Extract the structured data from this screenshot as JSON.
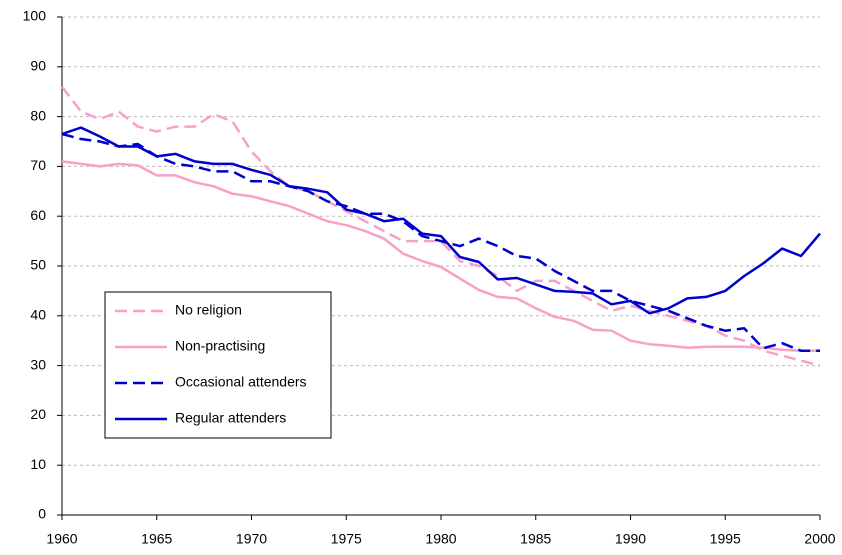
{
  "chart_data": {
    "type": "line",
    "x": [
      1960,
      1961,
      1962,
      1963,
      1964,
      1965,
      1966,
      1967,
      1968,
      1969,
      1970,
      1971,
      1972,
      1973,
      1974,
      1975,
      1976,
      1977,
      1978,
      1979,
      1980,
      1981,
      1982,
      1983,
      1984,
      1985,
      1986,
      1987,
      1988,
      1989,
      1990,
      1991,
      1992,
      1993,
      1994,
      1995,
      1996,
      1997,
      1998,
      1999,
      2000
    ],
    "xlim": [
      1960,
      2000
    ],
    "xticks": [
      1960,
      1965,
      1970,
      1975,
      1980,
      1985,
      1990,
      1995,
      2000
    ],
    "ylim": [
      0,
      100
    ],
    "yticks": [
      0,
      10,
      20,
      30,
      40,
      50,
      60,
      70,
      80,
      90,
      100
    ],
    "grid": true,
    "legend": "lower-left",
    "series": [
      {
        "name": "No religion",
        "color": "#f9a0c8",
        "dash": true,
        "values": [
          86,
          81,
          79.5,
          81,
          78,
          77,
          78,
          78,
          80.5,
          79,
          73,
          69,
          66,
          65,
          63,
          61,
          59,
          57,
          55,
          55,
          55,
          51,
          50,
          48,
          45,
          47,
          47,
          45,
          43,
          41,
          42,
          41,
          40,
          39,
          38,
          36,
          35,
          33,
          32,
          31,
          30
        ]
      },
      {
        "name": "Non-practising",
        "color": "#f9a0c8",
        "dash": false,
        "values": [
          71,
          70.5,
          70,
          70.5,
          70.2,
          68.2,
          68.2,
          66.8,
          66,
          64.5,
          64,
          63,
          62,
          60.5,
          59,
          58.2,
          57,
          55.5,
          52.5,
          51,
          49.8,
          47.5,
          45.2,
          43.8,
          43.5,
          41.5,
          39.8,
          39,
          37.2,
          37,
          35,
          34.3,
          34,
          33.6,
          33.8,
          33.8,
          33.8,
          33.6,
          33.2,
          33,
          33
        ]
      },
      {
        "name": "Occasional attenders",
        "color": "#0000cc",
        "dash": true,
        "values": [
          76.5,
          75.5,
          75,
          74,
          74.5,
          72,
          70.5,
          70,
          69,
          69,
          67,
          67,
          66,
          65,
          63,
          62,
          60.5,
          60.5,
          59,
          56,
          55,
          54,
          55.5,
          54,
          52,
          51.5,
          49,
          47,
          45,
          45,
          43,
          42,
          41,
          39.5,
          38,
          37,
          37.5,
          33.5,
          34.5,
          33,
          33
        ]
      },
      {
        "name": "Regular attenders",
        "color": "#0000cc",
        "dash": false,
        "values": [
          76.5,
          77.8,
          76,
          74,
          74,
          72,
          72.5,
          71,
          70.5,
          70.5,
          69.3,
          68.3,
          66,
          65.5,
          64.8,
          61.3,
          60.5,
          59,
          59.5,
          56.5,
          56,
          51.8,
          50.8,
          47.3,
          47.6,
          46.3,
          45,
          44.8,
          44.5,
          42.3,
          43,
          40.5,
          41.5,
          43.5,
          43.8,
          45,
          48,
          50.5,
          53.5,
          52,
          56.5
        ]
      }
    ]
  }
}
